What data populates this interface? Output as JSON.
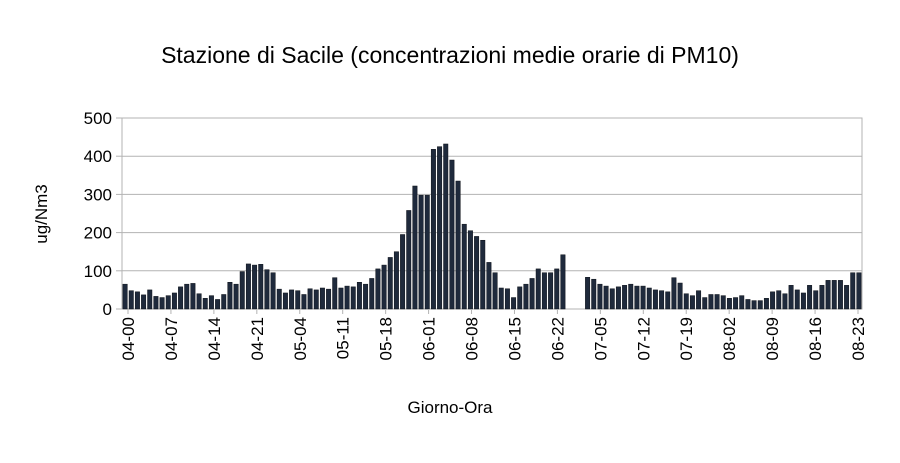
{
  "chart_data": {
    "type": "bar",
    "title": "Stazione di Sacile (concentrazioni medie orarie di PM10)",
    "xlabel": "Giorno-Ora",
    "ylabel": "ug/Nm3",
    "ylim": [
      0,
      500
    ],
    "yticks": [
      0,
      100,
      200,
      300,
      400,
      500
    ],
    "grid": true,
    "legend": "none",
    "bar_color": "#1f2a3c",
    "x_tick_labels": [
      "04-00",
      "04-07",
      "04-14",
      "04-21",
      "05-04",
      "05-11",
      "05-18",
      "06-01",
      "06-08",
      "06-15",
      "06-22",
      "07-05",
      "07-12",
      "07-19",
      "08-02",
      "08-09",
      "08-16",
      "08-23"
    ],
    "values": [
      65,
      48,
      45,
      37,
      50,
      33,
      30,
      35,
      42,
      58,
      65,
      67,
      40,
      28,
      35,
      25,
      38,
      70,
      65,
      98,
      118,
      115,
      117,
      103,
      95,
      52,
      42,
      50,
      48,
      38,
      53,
      50,
      55,
      52,
      82,
      55,
      60,
      58,
      70,
      65,
      80,
      105,
      115,
      135,
      150,
      195,
      258,
      322,
      298,
      298,
      418,
      425,
      432,
      390,
      335,
      222,
      205,
      190,
      180,
      122,
      95,
      55,
      53,
      30,
      58,
      65,
      80,
      105,
      95,
      95,
      105,
      142,
      null,
      null,
      null,
      83,
      78,
      65,
      60,
      53,
      58,
      62,
      65,
      60,
      60,
      55,
      50,
      48,
      45,
      82,
      68,
      40,
      35,
      48,
      30,
      38,
      38,
      35,
      28,
      30,
      35,
      25,
      22,
      22,
      28,
      45,
      48,
      40,
      62,
      50,
      42,
      62,
      48,
      62,
      75,
      75,
      75,
      62,
      95,
      95
    ]
  }
}
